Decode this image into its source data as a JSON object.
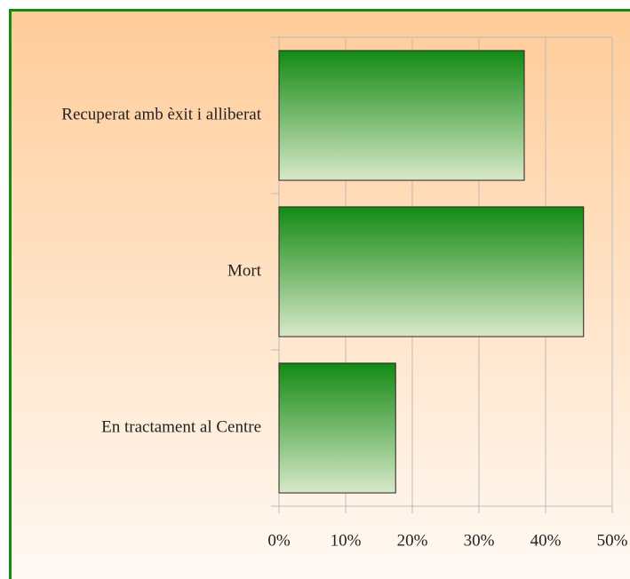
{
  "chart_data": {
    "type": "barh",
    "categories": [
      "Recuperat amb èxit i alliberat",
      "Mort",
      "En tractament al Centre"
    ],
    "values": [
      36.8,
      45.7,
      17.5
    ],
    "color": "#138a13",
    "xlim": [
      0,
      50
    ],
    "xticks": [
      {
        "value": 0,
        "label": "0%"
      },
      {
        "value": 10,
        "label": "10%"
      },
      {
        "value": 20,
        "label": "20%"
      },
      {
        "value": 30,
        "label": "30%"
      },
      {
        "value": 40,
        "label": "40%"
      },
      {
        "value": 50,
        "label": "50%"
      }
    ],
    "grid": true
  }
}
